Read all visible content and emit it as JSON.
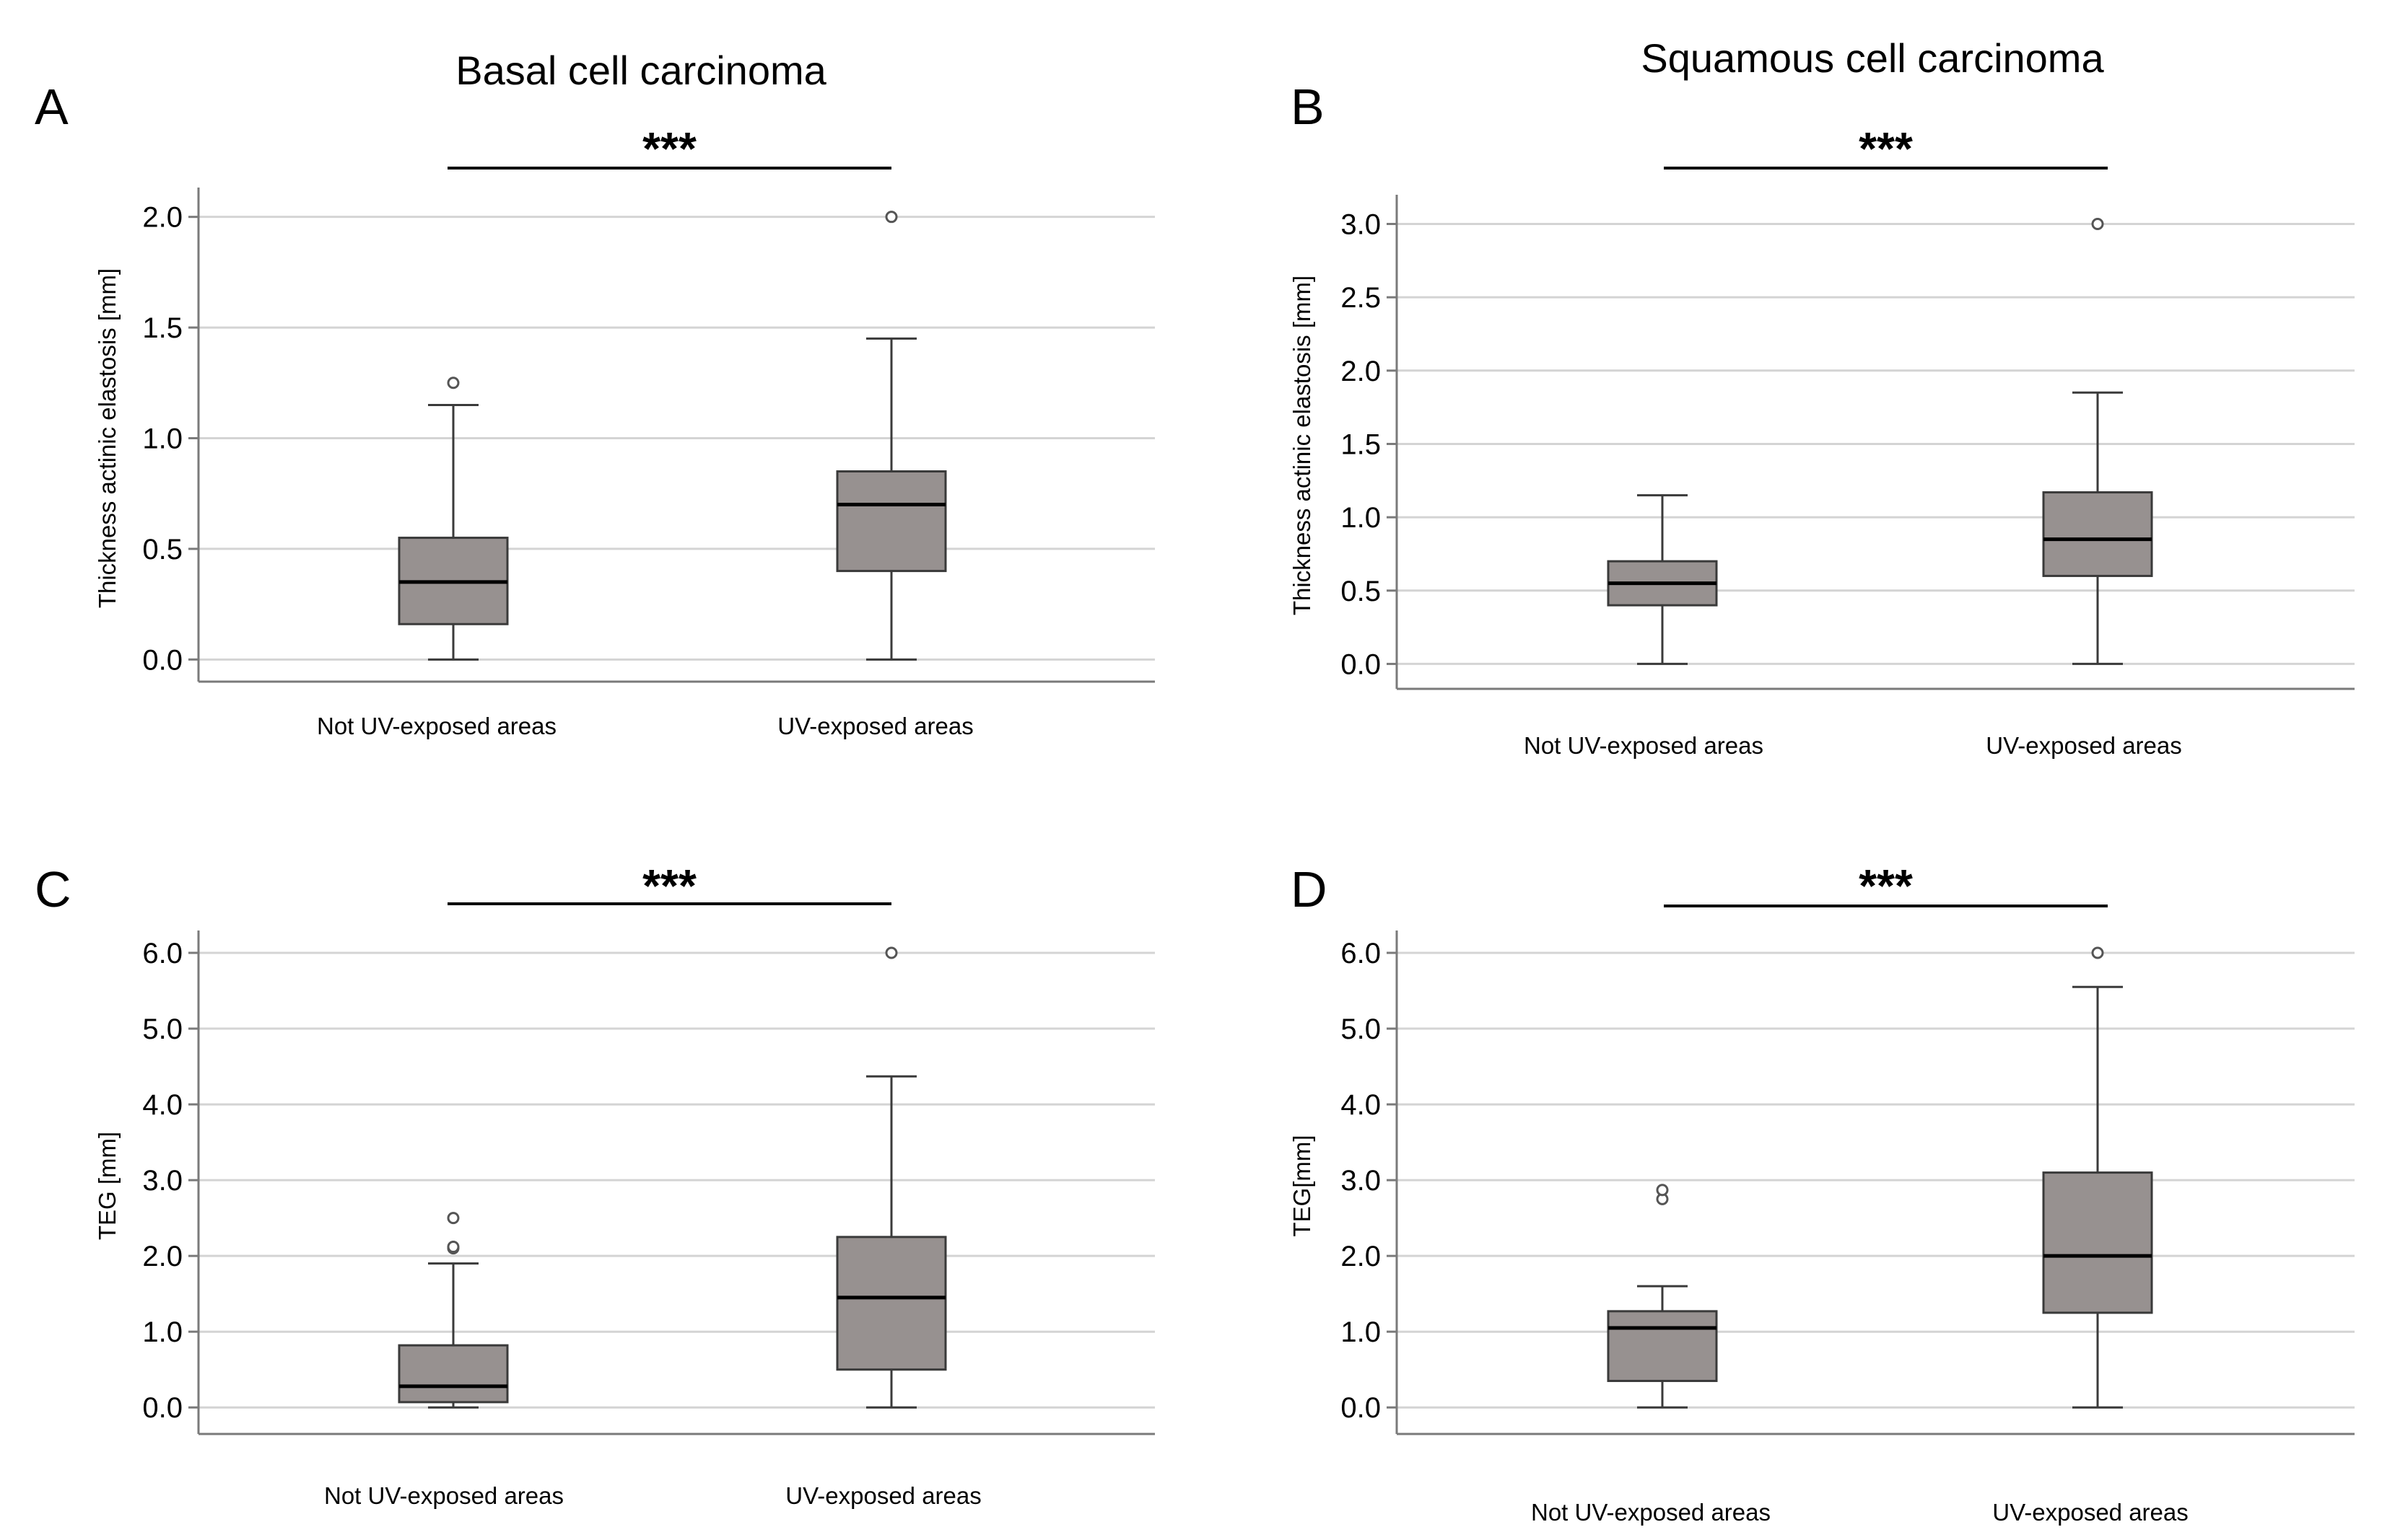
{
  "colors": {
    "box_fill": "#979190",
    "box_stroke": "#3a3a3a",
    "grid": "#d4d4d4",
    "axis": "#7a7a7a",
    "median": "#000000",
    "outlier": "#555555"
  },
  "chart_data": [
    {
      "panel_label": "A",
      "type": "boxplot",
      "title": "Basal cell carcinoma",
      "significance": "***",
      "ylabel": "Thickness actinic elastosis [mm]",
      "ylim": [
        -0.1,
        2.1
      ],
      "ticks": [
        "0.0",
        "0.5",
        "1.0",
        "1.5",
        "2.0"
      ],
      "categories": [
        "Not UV-exposed areas",
        "UV-exposed areas"
      ],
      "boxes": [
        {
          "min": 0.0,
          "q1": 0.16,
          "median": 0.35,
          "q3": 0.55,
          "max": 1.15,
          "outliers": [
            1.25
          ]
        },
        {
          "min": 0.0,
          "q1": 0.4,
          "median": 0.7,
          "q3": 0.85,
          "max": 1.45,
          "outliers": [
            2.0
          ]
        }
      ]
    },
    {
      "panel_label": "B",
      "type": "boxplot",
      "title": "Squamous cell carcinoma",
      "significance": "***",
      "ylabel": "Thickness actinic elastosis [mm]",
      "ylim": [
        -0.17,
        3.15
      ],
      "ticks": [
        "0.0",
        "0.5",
        "1.0",
        "1.5",
        "2.0",
        "2.5",
        "3.0"
      ],
      "categories": [
        "Not UV-exposed areas",
        "UV-exposed areas"
      ],
      "boxes": [
        {
          "min": 0.0,
          "q1": 0.4,
          "median": 0.55,
          "q3": 0.7,
          "max": 1.15,
          "outliers": []
        },
        {
          "min": 0.0,
          "q1": 0.6,
          "median": 0.85,
          "q3": 1.17,
          "max": 1.85,
          "outliers": [
            3.0
          ]
        }
      ]
    },
    {
      "panel_label": "C",
      "type": "boxplot",
      "title": "",
      "significance": "***",
      "ylabel": "TEG [mm]",
      "ylim": [
        -0.35,
        6.2
      ],
      "ticks": [
        "0.0",
        "1.0",
        "2.0",
        "3.0",
        "4.0",
        "5.0",
        "6.0"
      ],
      "categories": [
        "Not UV-exposed areas",
        "UV-exposed areas"
      ],
      "boxes": [
        {
          "min": 0.0,
          "q1": 0.07,
          "median": 0.28,
          "q3": 0.82,
          "max": 1.9,
          "outliers": [
            2.1,
            2.12,
            2.5
          ]
        },
        {
          "min": 0.0,
          "q1": 0.5,
          "median": 1.45,
          "q3": 2.25,
          "max": 4.37,
          "outliers": [
            6.0
          ]
        }
      ]
    },
    {
      "panel_label": "D",
      "type": "boxplot",
      "title": "",
      "significance": "***",
      "ylabel": "TEG[mm]",
      "ylim": [
        -0.35,
        6.2
      ],
      "ticks": [
        "0.0",
        "1.0",
        "2.0",
        "3.0",
        "4.0",
        "5.0",
        "6.0"
      ],
      "categories": [
        "Not UV-exposed areas",
        "UV-exposed areas"
      ],
      "boxes": [
        {
          "min": 0.0,
          "q1": 0.35,
          "median": 1.05,
          "q3": 1.27,
          "max": 1.6,
          "outliers": [
            2.75,
            2.87
          ]
        },
        {
          "min": 0.0,
          "q1": 1.25,
          "median": 2.0,
          "q3": 3.1,
          "max": 5.55,
          "outliers": [
            6.0
          ]
        }
      ]
    }
  ]
}
